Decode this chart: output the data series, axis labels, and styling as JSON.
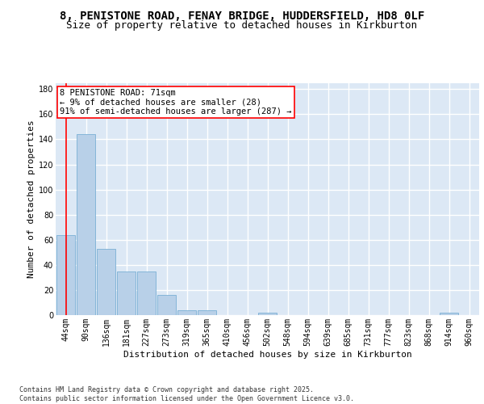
{
  "title_line1": "8, PENISTONE ROAD, FENAY BRIDGE, HUDDERSFIELD, HD8 0LF",
  "title_line2": "Size of property relative to detached houses in Kirkburton",
  "xlabel": "Distribution of detached houses by size in Kirkburton",
  "ylabel": "Number of detached properties",
  "categories": [
    "44sqm",
    "90sqm",
    "136sqm",
    "181sqm",
    "227sqm",
    "273sqm",
    "319sqm",
    "365sqm",
    "410sqm",
    "456sqm",
    "502sqm",
    "548sqm",
    "594sqm",
    "639sqm",
    "685sqm",
    "731sqm",
    "777sqm",
    "823sqm",
    "868sqm",
    "914sqm",
    "960sqm"
  ],
  "values": [
    64,
    144,
    53,
    35,
    35,
    16,
    4,
    4,
    0,
    0,
    2,
    0,
    0,
    0,
    0,
    0,
    0,
    0,
    0,
    2,
    0
  ],
  "bar_color": "#b8d0e8",
  "bar_edge_color": "#7aafd4",
  "annotation_text": "8 PENISTONE ROAD: 71sqm\n← 9% of detached houses are smaller (28)\n91% of semi-detached houses are larger (287) →",
  "annotation_box_color": "white",
  "annotation_box_edge": "red",
  "ylim": [
    0,
    185
  ],
  "yticks": [
    0,
    20,
    40,
    60,
    80,
    100,
    120,
    140,
    160,
    180
  ],
  "background_color": "#dce8f5",
  "grid_color": "white",
  "fig_background": "#ffffff",
  "footer_text": "Contains HM Land Registry data © Crown copyright and database right 2025.\nContains public sector information licensed under the Open Government Licence v3.0.",
  "title_fontsize": 10,
  "subtitle_fontsize": 9,
  "axis_label_fontsize": 8,
  "tick_fontsize": 7,
  "annotation_fontsize": 7.5,
  "footer_fontsize": 6
}
